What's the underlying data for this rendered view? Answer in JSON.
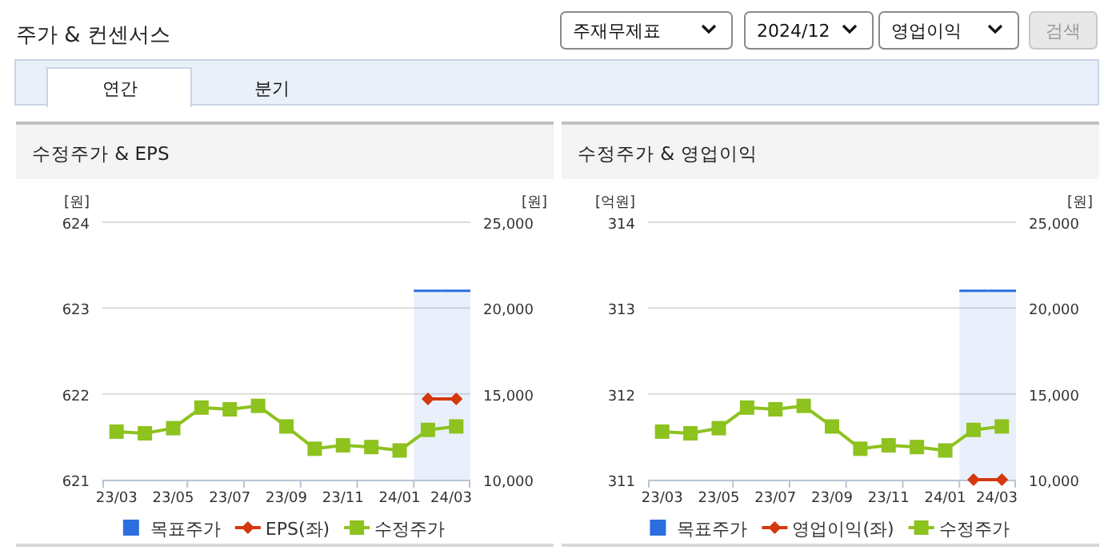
{
  "chart_data": [
    {
      "type": "other",
      "title": "주가 & 컨센서스",
      "annotations": [
        "주재무제표",
        "2024/12",
        "영업이익",
        "검색",
        "연간",
        "분기"
      ]
    },
    {
      "type": "line",
      "title": "수정주가 & EPS",
      "ylabel": "[원]",
      "y2label": "[원]",
      "categories": [
        "23/03",
        null,
        "23/05",
        null,
        "23/07",
        null,
        "23/09",
        null,
        "23/11",
        null,
        "24/01",
        null,
        "24/03"
      ],
      "ylim": [
        621,
        624
      ],
      "yticks": [
        621,
        622,
        623,
        624
      ],
      "y2lim": [
        10000,
        25000
      ],
      "y2ticks": [
        {
          "value": 10000,
          "label": "10,000"
        },
        {
          "value": 15000,
          "label": "15,000"
        },
        {
          "value": 20000,
          "label": "20,000"
        },
        {
          "value": 25000,
          "label": "25,000"
        }
      ],
      "grid": "y",
      "legend": "bottom",
      "series": [
        {
          "name": "목표주가",
          "type": "bar",
          "axis": "y2",
          "color": "#2a6ee0",
          "values": [
            null,
            null,
            null,
            null,
            null,
            null,
            null,
            null,
            null,
            null,
            null,
            21000,
            21000
          ]
        },
        {
          "name": "EPS(좌)",
          "type": "line",
          "color": "#d4380d",
          "marker": "diamond",
          "values": [
            null,
            null,
            null,
            null,
            null,
            null,
            null,
            null,
            null,
            null,
            null,
            621.94,
            621.94
          ]
        },
        {
          "name": "수정주가",
          "type": "line",
          "axis": "y2",
          "color": "#8dc21f",
          "marker": "square",
          "values": [
            12800,
            12700,
            13000,
            14200,
            14100,
            14300,
            13100,
            11800,
            12000,
            11900,
            11700,
            12900,
            13100
          ]
        }
      ]
    },
    {
      "type": "line",
      "title": "수정주가 & 영업이익",
      "ylabel": "[억원]",
      "y2label": "[원]",
      "categories": [
        "23/03",
        null,
        "23/05",
        null,
        "23/07",
        null,
        "23/09",
        null,
        "23/11",
        null,
        "24/01",
        null,
        "24/03"
      ],
      "ylim": [
        311,
        314
      ],
      "yticks": [
        311,
        312,
        313,
        314
      ],
      "y2lim": [
        10000,
        25000
      ],
      "y2ticks": [
        {
          "value": 10000,
          "label": "10,000"
        },
        {
          "value": 15000,
          "label": "15,000"
        },
        {
          "value": 20000,
          "label": "20,000"
        },
        {
          "value": 25000,
          "label": "25,000"
        }
      ],
      "grid": "y",
      "legend": "bottom",
      "series": [
        {
          "name": "목표주가",
          "type": "bar",
          "axis": "y2",
          "color": "#2a6ee0",
          "values": [
            null,
            null,
            null,
            null,
            null,
            null,
            null,
            null,
            null,
            null,
            null,
            21000,
            21000
          ]
        },
        {
          "name": "영업이익(좌)",
          "type": "line",
          "color": "#d4380d",
          "marker": "diamond",
          "values": [
            null,
            null,
            null,
            null,
            null,
            null,
            null,
            null,
            null,
            null,
            null,
            311,
            311
          ]
        },
        {
          "name": "수정주가",
          "type": "line",
          "axis": "y2",
          "color": "#8dc21f",
          "marker": "square",
          "values": [
            12800,
            12700,
            13000,
            14200,
            14100,
            14300,
            13100,
            11800,
            12000,
            11900,
            11700,
            12900,
            13100
          ]
        }
      ]
    }
  ]
}
